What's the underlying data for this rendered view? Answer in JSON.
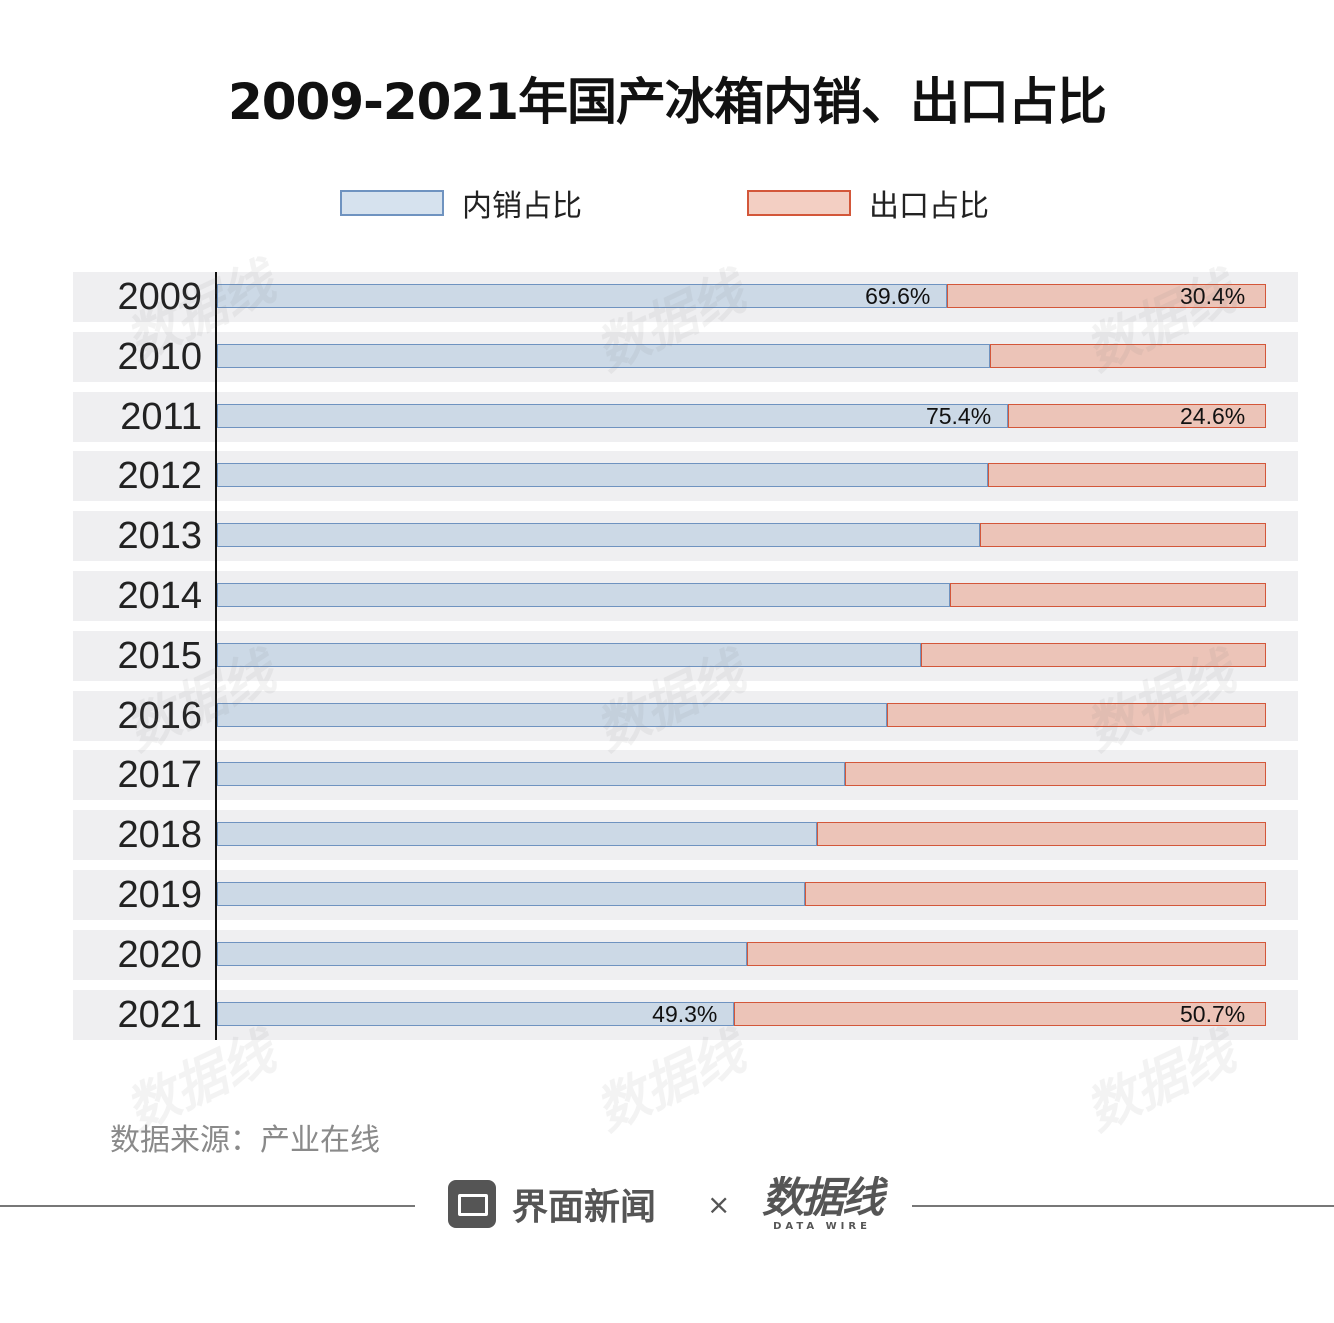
{
  "chart_data": {
    "type": "bar",
    "stacked": true,
    "orientation": "horizontal",
    "title": "2009-2021年国产冰箱内销、出口占比",
    "categories": [
      "2009",
      "2010",
      "2011",
      "2012",
      "2013",
      "2014",
      "2015",
      "2016",
      "2017",
      "2018",
      "2019",
      "2020",
      "2021"
    ],
    "series": [
      {
        "name": "内销占比",
        "values": [
          69.6,
          73.7,
          75.4,
          73.5,
          72.7,
          69.9,
          67.1,
          63.9,
          59.9,
          57.2,
          56.1,
          50.5,
          49.3
        ],
        "color": "#ccd9e6",
        "border": "#6f93c0"
      },
      {
        "name": "出口占比",
        "values": [
          30.4,
          26.3,
          24.6,
          26.5,
          27.3,
          30.1,
          32.9,
          36.1,
          40.1,
          42.8,
          43.9,
          49.5,
          50.7
        ],
        "color": "#ecc4b8",
        "border": "#d3573a"
      }
    ],
    "data_labels": {
      "2009": [
        "69.6%",
        "30.4%"
      ],
      "2011": [
        "75.4%",
        "24.6%"
      ],
      "2021": [
        "49.3%",
        "50.7%"
      ]
    },
    "xlim": [
      0,
      100
    ],
    "legend": "top-center",
    "xlabel": "",
    "ylabel": ""
  },
  "source": "数据来源：产业在线",
  "footer": {
    "brand": "界面新闻",
    "times": "×",
    "partner": "数据线",
    "partner_sub": "DATA WIRE"
  }
}
